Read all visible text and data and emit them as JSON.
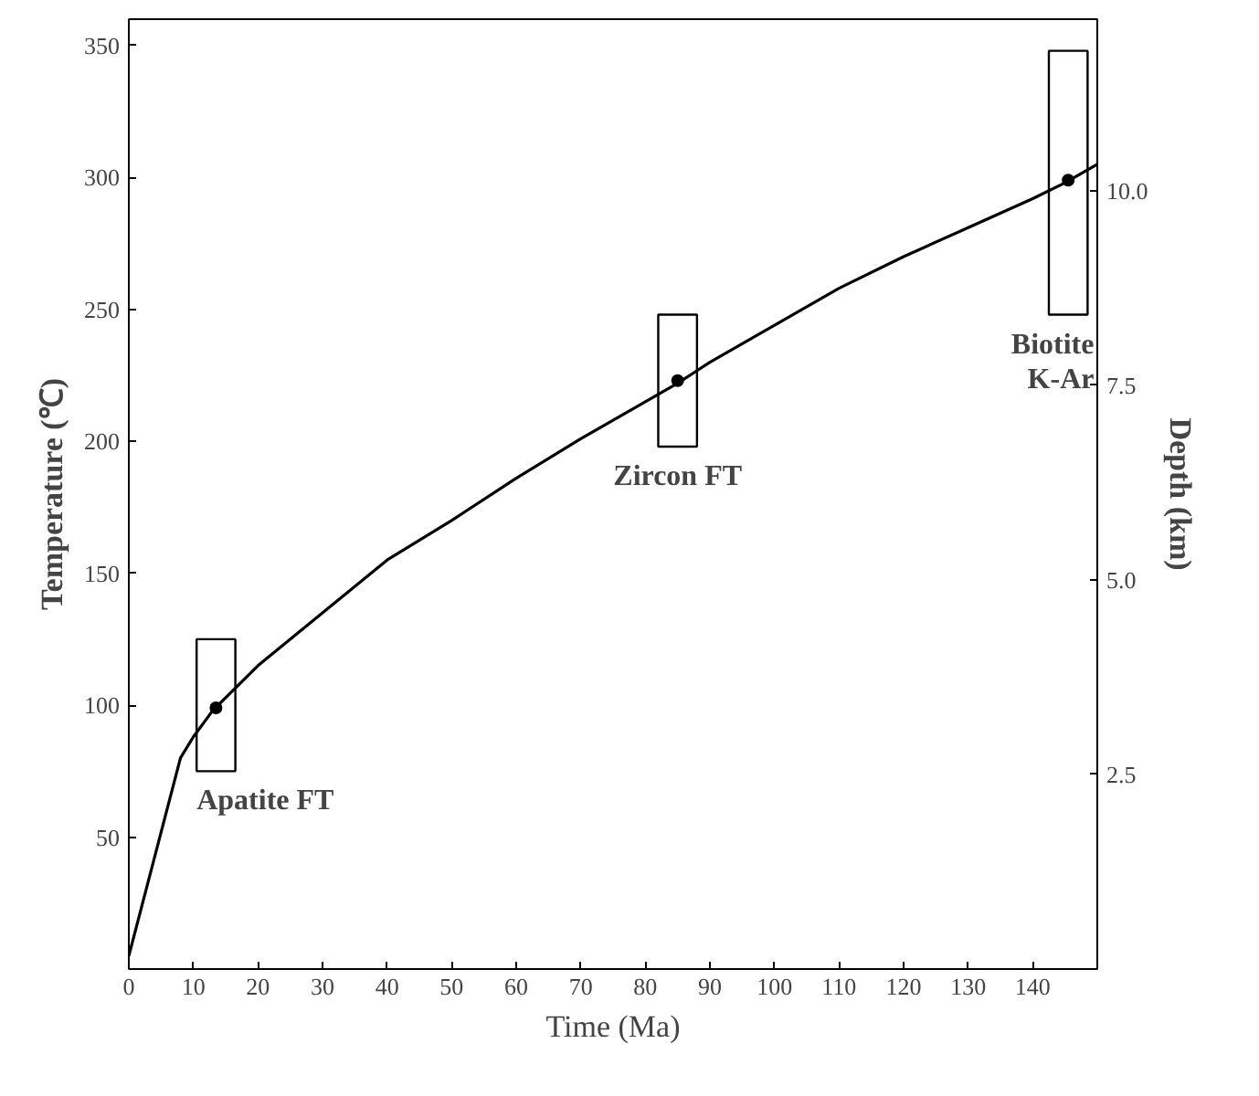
{
  "chart_data": {
    "type": "line",
    "xlabel": "Time (Ma)",
    "ylabel": "Temperature (℃)",
    "y2label": "Depth (km)",
    "xlim": [
      0,
      150
    ],
    "xticks": [
      0,
      10,
      20,
      30,
      40,
      50,
      60,
      70,
      80,
      90,
      100,
      110,
      120,
      130,
      140
    ],
    "ylim": [
      0,
      360
    ],
    "yticks": [
      50,
      100,
      150,
      200,
      250,
      300,
      350
    ],
    "y2lim": [
      0,
      12.2
    ],
    "y2ticks": [
      2.5,
      {
        "value": 5,
        "label": "5.0"
      },
      7.5,
      {
        "value": 10,
        "label": "10.0"
      }
    ],
    "series": [
      {
        "type": "bar",
        "color": "#000000",
        "x": [
          13.5,
          85,
          145.5
        ],
        "base": [
          75,
          198,
          248
        ],
        "values": [
          50,
          50,
          100
        ]
      },
      {
        "color": "#000000",
        "x": [
          0,
          8,
          10,
          13,
          20,
          30,
          40,
          50,
          60,
          70,
          80,
          85,
          90,
          100,
          110,
          120,
          130,
          140,
          145,
          150
        ],
        "values": [
          5,
          80,
          88,
          98,
          115,
          135,
          155,
          170,
          186,
          201,
          215,
          222,
          230,
          244,
          258,
          270,
          281,
          292,
          298,
          305
        ]
      },
      {
        "type": "scatter",
        "marker": "circle",
        "color": "#000000",
        "x": [
          13.5,
          85,
          145.5
        ],
        "values": [
          99,
          223,
          299
        ]
      }
    ],
    "annotations": [
      "Apatite FT",
      "Zircon FT",
      "Biotite\nK-Ar"
    ],
    "grid": false
  }
}
